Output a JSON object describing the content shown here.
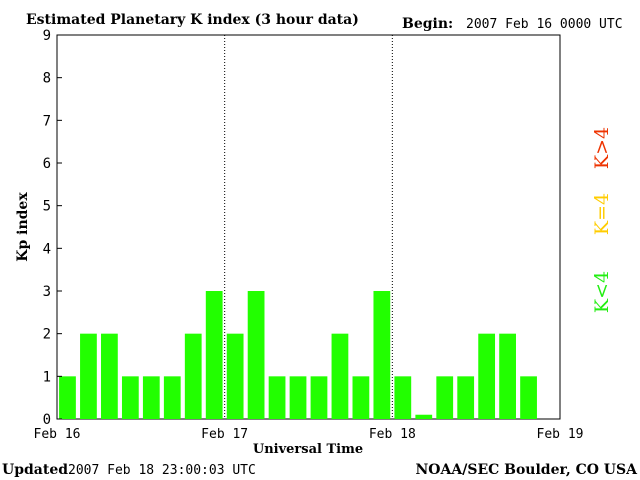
{
  "chart_data": {
    "type": "bar",
    "title": "Estimated Planetary K index (3 hour data)",
    "begin_label": "Begin:",
    "begin_value": "2007 Feb 16 0000 UTC",
    "xlabel": "Universal Time",
    "ylabel": "Kp index",
    "ylim": [
      0,
      9
    ],
    "yticks": [
      "0",
      "1",
      "2",
      "3",
      "4",
      "5",
      "6",
      "7",
      "8",
      "9"
    ],
    "x_tick_labels": [
      "Feb 16",
      "Feb 17",
      "Feb 18",
      "Feb 19"
    ],
    "values": [
      1,
      2,
      2,
      1,
      1,
      1,
      2,
      3,
      2,
      3,
      1,
      1,
      1,
      2,
      1,
      3,
      1,
      0.1,
      1,
      1,
      2,
      2,
      1
    ],
    "bar_color": "#22ff00",
    "grid": false,
    "legend": [
      {
        "label": "K<4",
        "color": "#22ee11"
      },
      {
        "label": "K=4",
        "color": "#ffcc00"
      },
      {
        "label": "K>4",
        "color": "#ee3300"
      }
    ]
  },
  "footer": {
    "updated_label": "Updated",
    "updated_value": "2007 Feb 18 23:00:03 UTC",
    "source": "NOAA/SEC Boulder, CO USA"
  }
}
